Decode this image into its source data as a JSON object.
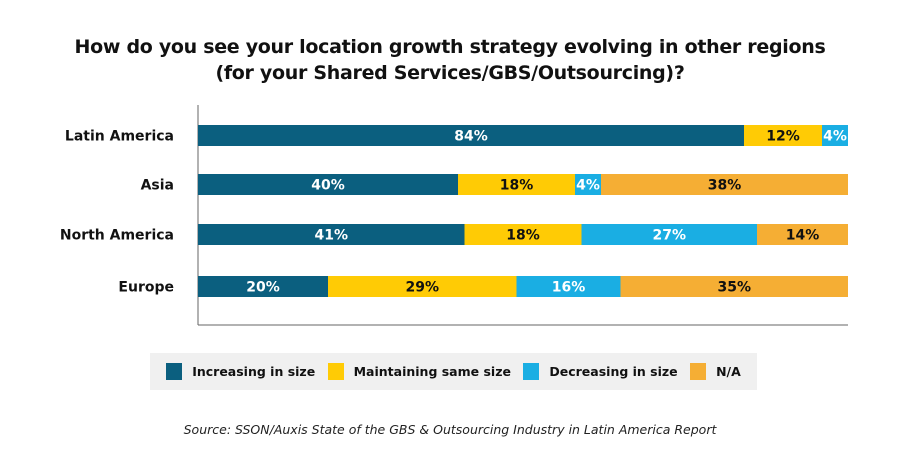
{
  "chart_data": {
    "type": "bar",
    "orientation": "horizontal",
    "stacked": true,
    "title": "How do you see your location growth strategy evolving in other regions (for your Shared Services/GBS/Outsourcing)?",
    "title_lines": [
      "How do you see your location growth strategy evolving in other regions",
      "(for your Shared Services/GBS/Outsourcing)?"
    ],
    "categories": [
      "Latin America",
      "Asia",
      "North America",
      "Europe"
    ],
    "series": [
      {
        "name": "Increasing in size",
        "color": "#0b5f7f",
        "label_color": "#ffffff",
        "values": [
          84,
          40,
          41,
          20
        ]
      },
      {
        "name": "Maintaining same size",
        "color": "#ffcb05",
        "label_color": "#111111",
        "values": [
          12,
          18,
          18,
          29
        ]
      },
      {
        "name": "Decreasing in size",
        "color": "#1aaee3",
        "label_color": "#ffffff",
        "values": [
          4,
          4,
          27,
          16
        ]
      },
      {
        "name": "N/A",
        "color": "#f5ae34",
        "label_color": "#111111",
        "values": [
          0,
          38,
          14,
          35
        ]
      }
    ],
    "value_suffix": "%",
    "legend_position": "bottom",
    "grid": false,
    "source": "Source: SSON/Auxis State of the GBS & Outsourcing Industry in Latin America Report"
  }
}
